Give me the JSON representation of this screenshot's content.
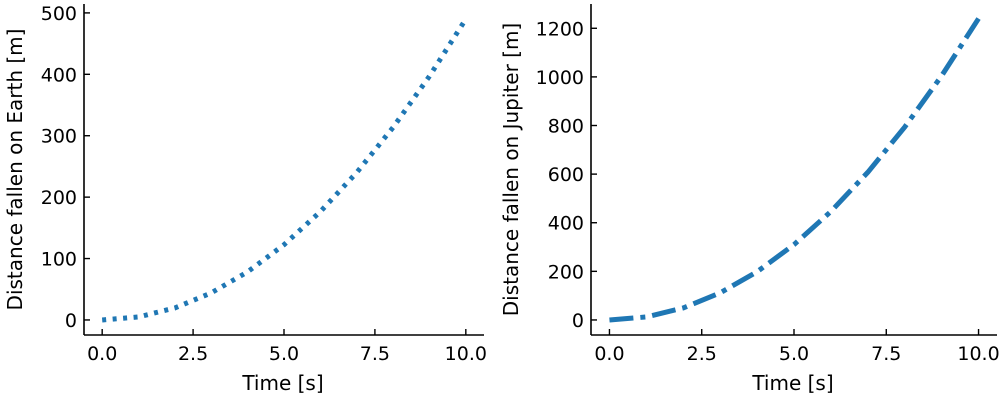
{
  "chart_data": [
    {
      "type": "line",
      "title": "",
      "xlabel": "Time [s]",
      "ylabel": "Distance fallen on Earth [m]",
      "xlim": [
        -0.5,
        10.5
      ],
      "ylim": [
        -24.5,
        514.5
      ],
      "xticks": [
        0.0,
        2.5,
        5.0,
        7.5,
        10.0
      ],
      "xtick_labels": [
        "0.0",
        "2.5",
        "5.0",
        "7.5",
        "10.0"
      ],
      "yticks": [
        0,
        100,
        200,
        300,
        400,
        500
      ],
      "ytick_labels": [
        "0",
        "100",
        "200",
        "300",
        "400",
        "500"
      ],
      "grid": false,
      "line_style": "dotted",
      "color": "#1f77b4",
      "x": [
        0,
        1,
        2,
        3,
        4,
        5,
        6,
        7,
        8,
        9,
        10
      ],
      "y": [
        0,
        4.9,
        19.6,
        44.1,
        78.4,
        122.5,
        176.4,
        240.1,
        313.6,
        396.9,
        490
      ]
    },
    {
      "type": "line",
      "title": "",
      "xlabel": "Time [s]",
      "ylabel": "Distance fallen on Jupiter [m]",
      "xlim": [
        -0.5,
        10.5
      ],
      "ylim": [
        -61.9,
        1299.9
      ],
      "xticks": [
        0.0,
        2.5,
        5.0,
        7.5,
        10.0
      ],
      "xtick_labels": [
        "0.0",
        "2.5",
        "5.0",
        "7.5",
        "10.0"
      ],
      "yticks": [
        0,
        200,
        400,
        600,
        800,
        1000,
        1200
      ],
      "ytick_labels": [
        "0",
        "200",
        "400",
        "600",
        "800",
        "1000",
        "1200"
      ],
      "grid": false,
      "line_style": "dashdot",
      "color": "#1f77b4",
      "x": [
        0,
        1,
        2,
        3,
        4,
        5,
        6,
        7,
        8,
        9,
        10
      ],
      "y": [
        0,
        12.4,
        49.6,
        111.6,
        198.4,
        310,
        446.4,
        607.6,
        793.6,
        1004.4,
        1240
      ]
    }
  ]
}
